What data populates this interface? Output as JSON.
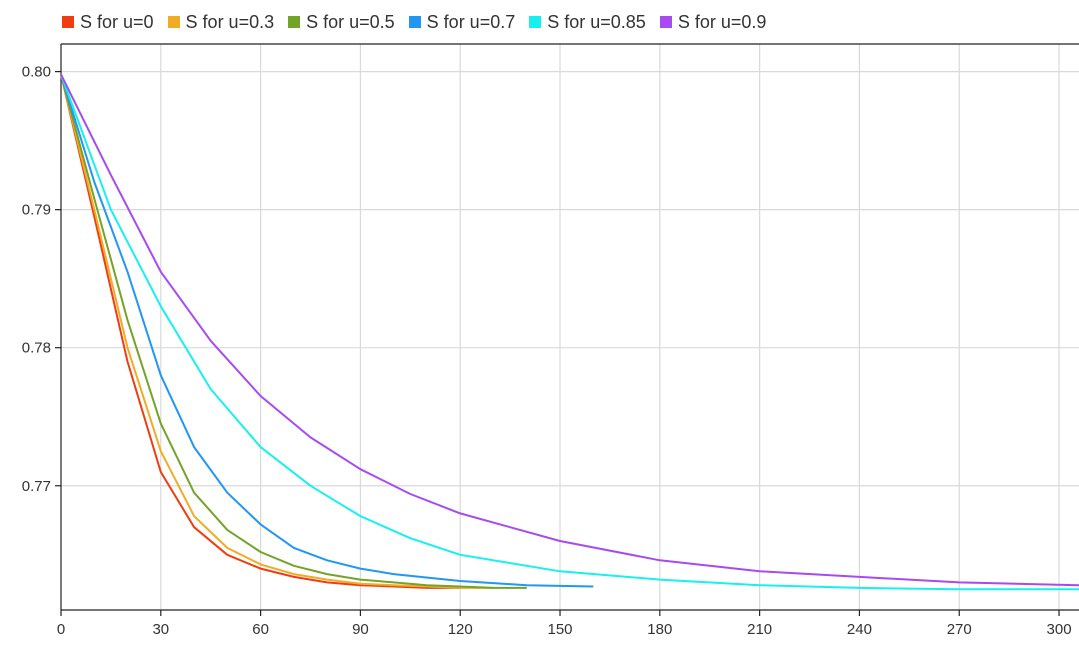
{
  "chart_data": {
    "type": "line",
    "title": "",
    "xlabel": "",
    "ylabel": "",
    "xlim": [
      0,
      306
    ],
    "ylim": [
      0.761,
      0.802
    ],
    "x_ticks": [
      "0",
      "30",
      "60",
      "90",
      "120",
      "150",
      "180",
      "210",
      "240",
      "270",
      "300"
    ],
    "x_tick_values": [
      0,
      30,
      60,
      90,
      120,
      150,
      180,
      210,
      240,
      270,
      300
    ],
    "y_ticks": [
      "0.80",
      "0.79",
      "0.78",
      "0.77"
    ],
    "y_tick_values": [
      0.8,
      0.79,
      0.78,
      0.77
    ],
    "grid": true,
    "legend_position": "top-left",
    "series": [
      {
        "name": "S for u=0",
        "color": "#f03c10",
        "x": [
          0,
          10,
          20,
          30,
          40,
          50,
          60,
          70,
          80,
          90,
          100,
          110,
          120
        ],
        "y": [
          0.7998,
          0.7895,
          0.779,
          0.771,
          0.767,
          0.765,
          0.764,
          0.7634,
          0.763,
          0.7628,
          0.7627,
          0.7626,
          0.7626
        ]
      },
      {
        "name": "S for u=0.3",
        "color": "#f0ac24",
        "x": [
          0,
          10,
          20,
          30,
          40,
          50,
          60,
          70,
          80,
          90,
          100,
          110,
          120,
          130
        ],
        "y": [
          0.7998,
          0.79,
          0.78,
          0.7725,
          0.7678,
          0.7655,
          0.7643,
          0.7636,
          0.7632,
          0.7629,
          0.7628,
          0.7627,
          0.7626,
          0.7626
        ]
      },
      {
        "name": "S for u=0.5",
        "color": "#74a32a",
        "x": [
          0,
          10,
          20,
          30,
          40,
          50,
          60,
          70,
          80,
          90,
          100,
          110,
          120,
          130,
          140
        ],
        "y": [
          0.7998,
          0.7908,
          0.782,
          0.7745,
          0.7695,
          0.7668,
          0.7652,
          0.7642,
          0.7636,
          0.7632,
          0.763,
          0.7628,
          0.7627,
          0.7626,
          0.7626
        ]
      },
      {
        "name": "S for u=0.7",
        "color": "#2196f3",
        "x": [
          0,
          10,
          20,
          30,
          40,
          50,
          60,
          70,
          80,
          90,
          100,
          120,
          140,
          160
        ],
        "y": [
          0.7998,
          0.792,
          0.7855,
          0.778,
          0.7728,
          0.7695,
          0.7672,
          0.7655,
          0.7646,
          0.764,
          0.7636,
          0.7631,
          0.7628,
          0.7627
        ]
      },
      {
        "name": "S for u=0.85",
        "color": "#18f0f0",
        "x": [
          0,
          15,
          30,
          45,
          60,
          75,
          90,
          105,
          120,
          150,
          180,
          210,
          240,
          270,
          306
        ],
        "y": [
          0.7998,
          0.79,
          0.783,
          0.777,
          0.7728,
          0.77,
          0.7678,
          0.7662,
          0.765,
          0.7638,
          0.7632,
          0.7628,
          0.7626,
          0.7625,
          0.7625
        ]
      },
      {
        "name": "S for u=0.9",
        "color": "#a74af0",
        "x": [
          0,
          15,
          30,
          45,
          60,
          75,
          90,
          105,
          120,
          150,
          180,
          210,
          240,
          270,
          306
        ],
        "y": [
          0.7998,
          0.7925,
          0.7855,
          0.7805,
          0.7765,
          0.7735,
          0.7712,
          0.7694,
          0.768,
          0.766,
          0.7646,
          0.7638,
          0.7634,
          0.763,
          0.7628
        ]
      }
    ]
  }
}
